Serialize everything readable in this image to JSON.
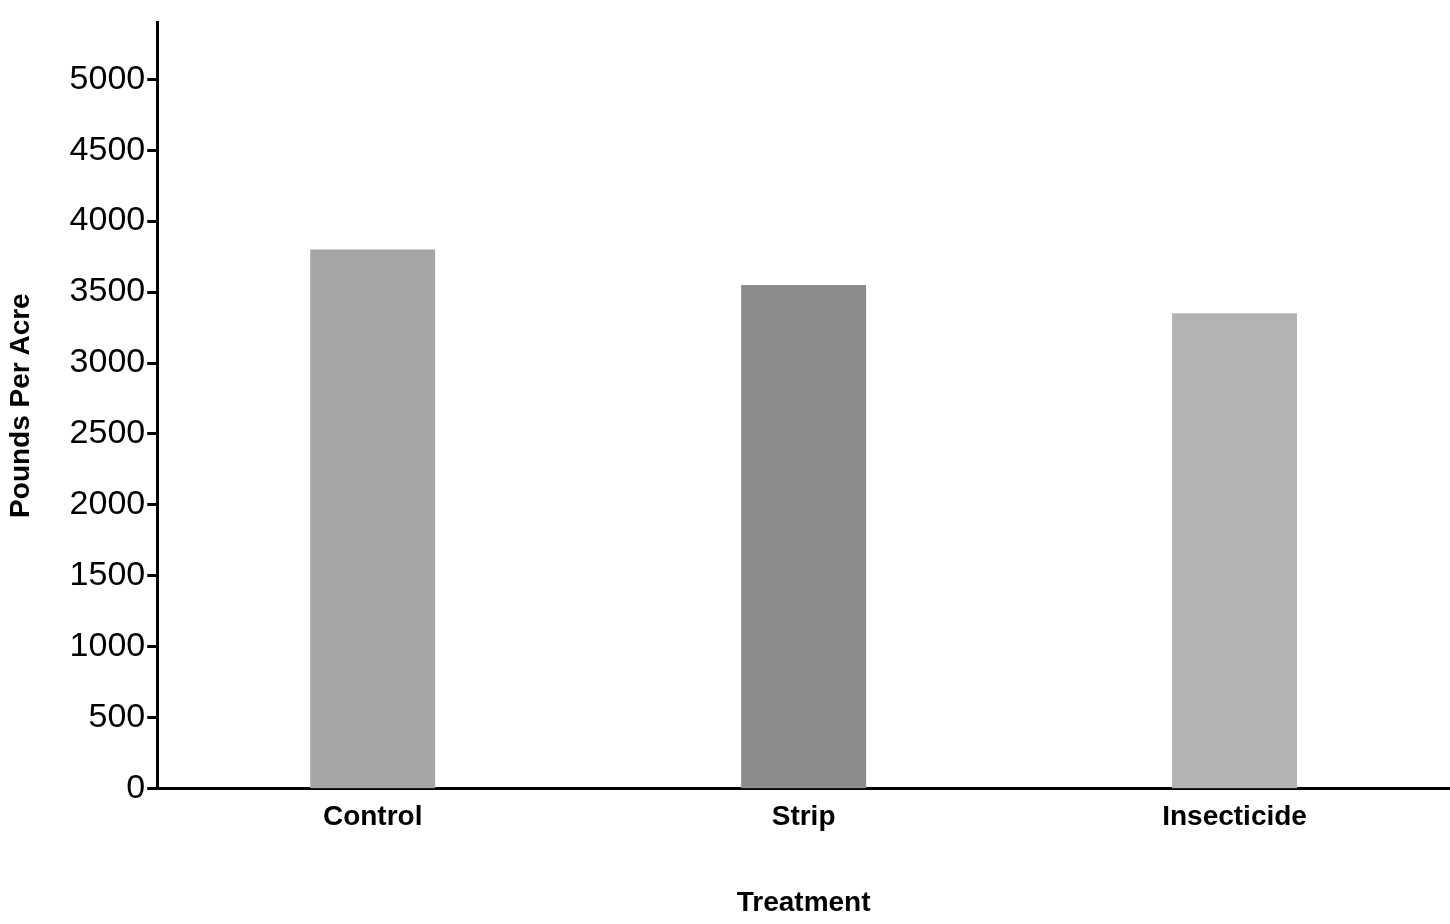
{
  "chart_data": {
    "type": "bar",
    "xlabel": "Treatment",
    "ylabel": "Pounds Per Acre",
    "categories": [
      "Control",
      "Strip",
      "Insecticide"
    ],
    "values": [
      3800,
      3550,
      3350
    ],
    "colors": [
      "#a6a6a6",
      "#8c8c8c",
      "#b3b3b3"
    ],
    "ylim": [
      0,
      5400
    ],
    "yticks": [
      0,
      500,
      1000,
      1500,
      2000,
      2500,
      3000,
      3500,
      4000,
      4500,
      5000
    ],
    "grid": false,
    "legend": false
  }
}
